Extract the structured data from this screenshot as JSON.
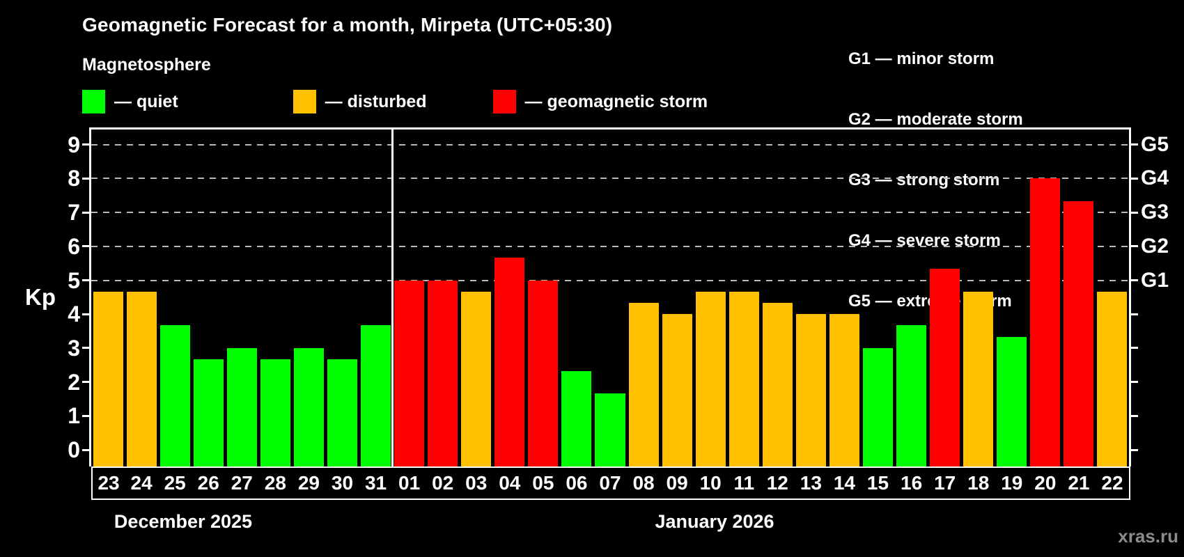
{
  "title": "Geomagnetic Forecast for a month, Mirpeta (UTC+05:30)",
  "subtitle": "Magnetosphere",
  "legend": {
    "items": [
      {
        "key": "quiet",
        "label": "— quiet"
      },
      {
        "key": "disturbed",
        "label": "— disturbed"
      },
      {
        "key": "storm",
        "label": "— geomagnetic storm"
      }
    ]
  },
  "g_legend": [
    "G1 — minor storm",
    "G2 — moderate storm",
    "G3 — strong storm",
    "G4 — severe storm",
    "G5 — extreme storm"
  ],
  "axis": {
    "y_label": "Kp",
    "y_ticks": [
      0,
      1,
      2,
      3,
      4,
      5,
      6,
      7,
      8,
      9
    ]
  },
  "watermark": "xras.ru",
  "colors": {
    "background": "#000000",
    "quiet": "#00ff00",
    "disturbed": "#ffc000",
    "storm": "#ff0000",
    "axis": "#ffffff",
    "grid": "#b9b9b9",
    "watermark": "#8c8c8c"
  },
  "chart_data": {
    "type": "bar",
    "title": "Geomagnetic Forecast for a month, Mirpeta (UTC+05:30)",
    "xlabel": "",
    "ylabel": "Kp",
    "ylim": [
      0,
      9.4
    ],
    "grid": "dashed horizontal at Kp 5-9",
    "legend_position": "top",
    "categories": [
      "23",
      "24",
      "25",
      "26",
      "27",
      "28",
      "29",
      "30",
      "31",
      "01",
      "02",
      "03",
      "04",
      "05",
      "06",
      "07",
      "08",
      "09",
      "10",
      "11",
      "12",
      "13",
      "14",
      "15",
      "16",
      "17",
      "18",
      "19",
      "20",
      "21",
      "22"
    ],
    "values": [
      4.67,
      4.67,
      3.67,
      2.67,
      3,
      2.67,
      3,
      2.67,
      3.67,
      5,
      5,
      4.67,
      5.67,
      5,
      2.33,
      1.67,
      4.33,
      4,
      4.67,
      4.67,
      4.33,
      4,
      4,
      3,
      3.67,
      5.33,
      4.67,
      3.33,
      8,
      7.33,
      4.67
    ],
    "states": [
      "disturbed",
      "disturbed",
      "quiet",
      "quiet",
      "quiet",
      "quiet",
      "quiet",
      "quiet",
      "quiet",
      "storm",
      "storm",
      "disturbed",
      "storm",
      "storm",
      "quiet",
      "quiet",
      "disturbed",
      "disturbed",
      "disturbed",
      "disturbed",
      "disturbed",
      "disturbed",
      "disturbed",
      "quiet",
      "quiet",
      "storm",
      "disturbed",
      "quiet",
      "storm",
      "storm",
      "disturbed"
    ],
    "grid_kp": [
      5,
      6,
      7,
      8,
      9
    ],
    "right_axis": [
      {
        "kp": 5,
        "label": "G1"
      },
      {
        "kp": 6,
        "label": "G2"
      },
      {
        "kp": 7,
        "label": "G3"
      },
      {
        "kp": 8,
        "label": "G4"
      },
      {
        "kp": 9,
        "label": "G5"
      }
    ],
    "month_groups": [
      {
        "label": "December 2025",
        "count": 9
      },
      {
        "label": "January 2026",
        "count": 22
      }
    ]
  }
}
